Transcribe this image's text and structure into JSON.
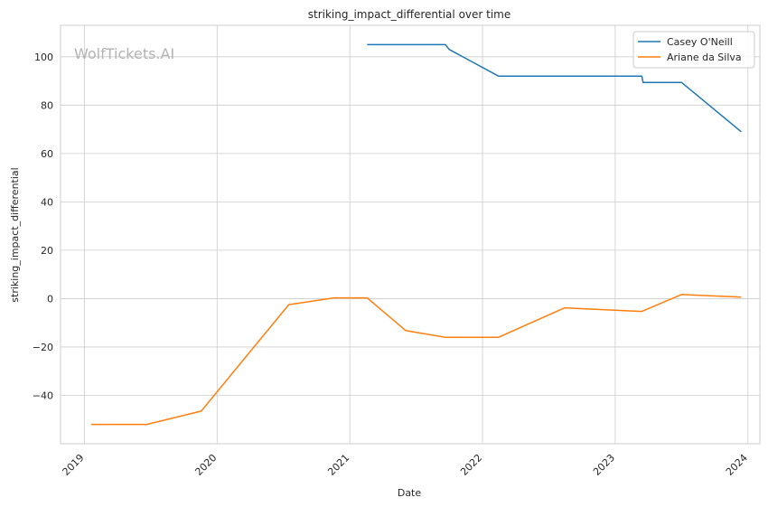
{
  "chart_data": {
    "type": "line",
    "title": "striking_impact_differential over time",
    "xlabel": "Date",
    "ylabel": "striking_impact_differential",
    "watermark": "WolfTickets.AI",
    "x_ticks": [
      "2019",
      "2020",
      "2021",
      "2022",
      "2023",
      "2024"
    ],
    "y_ticks": [
      -40,
      -20,
      0,
      20,
      40,
      60,
      80,
      100
    ],
    "xlim": [
      2018.82,
      2024.09
    ],
    "ylim": [
      -60,
      113
    ],
    "grid": true,
    "legend_position": "top-right",
    "series": [
      {
        "name": "Casey O'Neill",
        "color": "#1f77b4",
        "points": [
          [
            2021.13,
            105
          ],
          [
            2021.72,
            105
          ],
          [
            2021.75,
            103
          ],
          [
            2022.12,
            92
          ],
          [
            2023.2,
            92
          ],
          [
            2023.21,
            89.4
          ],
          [
            2023.5,
            89.4
          ],
          [
            2023.95,
            69
          ]
        ]
      },
      {
        "name": "Ariane da Silva",
        "color": "#ff7f0e",
        "points": [
          [
            2019.05,
            -52
          ],
          [
            2019.47,
            -52
          ],
          [
            2019.88,
            -46.5
          ],
          [
            2020.54,
            -2.5
          ],
          [
            2020.88,
            0.3
          ],
          [
            2021.13,
            0.3
          ],
          [
            2021.42,
            -13.2
          ],
          [
            2021.72,
            -16
          ],
          [
            2022.12,
            -16
          ],
          [
            2022.62,
            -3.8
          ],
          [
            2023.2,
            -5.3
          ],
          [
            2023.5,
            1.7
          ],
          [
            2023.95,
            0.6
          ]
        ]
      }
    ]
  }
}
